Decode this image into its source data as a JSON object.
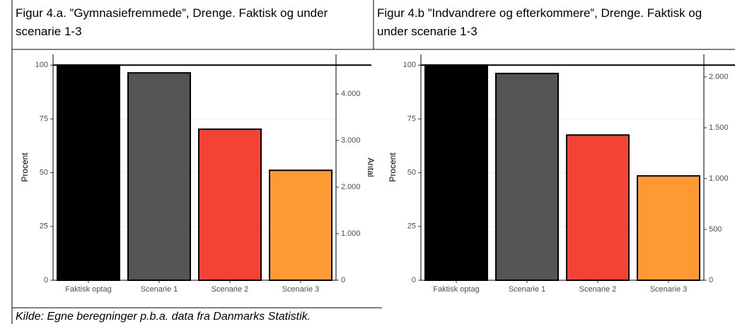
{
  "chart_data": [
    {
      "type": "bar",
      "title": "Figur 4.a. ”Gymnasiefremmede”, Drenge. Faktisk og under scenarie 1-3",
      "categories": [
        "Faktisk optag",
        "Scenarie 1",
        "Scenarie 2",
        "Scenarie 3"
      ],
      "values": [
        100,
        96.4,
        70.2,
        51.1
      ],
      "colors": [
        "#000000",
        "#555555",
        "#f44336",
        "#ff9a33"
      ],
      "ylabel": "Procent",
      "y2label": "Antal",
      "ylim": [
        0,
        105
      ],
      "yticks": [
        0,
        25,
        50,
        75,
        100
      ],
      "y2lim": [
        0,
        4850
      ],
      "y2ticks": [
        0,
        {
          "value": 1000,
          "label": "1.000"
        },
        {
          "value": 2000,
          "label": "2.000"
        },
        {
          "value": 3000,
          "label": "3.000"
        },
        {
          "value": 4000,
          "label": "4.000"
        }
      ],
      "hline": 100,
      "grid": true
    },
    {
      "type": "bar",
      "title": "Figur 4.b ”Indvandrere og efterkommere”, Drenge. Faktisk og under scenarie 1-3",
      "categories": [
        "Faktisk optag",
        "Scenarie 1",
        "Scenarie 2",
        "Scenarie 3"
      ],
      "values": [
        100,
        96.1,
        67.5,
        48.5
      ],
      "colors": [
        "#000000",
        "#555555",
        "#f44336",
        "#ff9a33"
      ],
      "ylabel": "Procent",
      "ylim": [
        0,
        105
      ],
      "yticks": [
        0,
        25,
        50,
        75,
        100
      ],
      "y2lim": [
        0,
        2222
      ],
      "y2ticks": [
        0,
        500,
        {
          "value": 1000,
          "label": "1.000"
        },
        {
          "value": 1500,
          "label": "1.500"
        },
        {
          "value": 2000,
          "label": "2.000"
        }
      ],
      "hline": 100,
      "grid": true
    }
  ],
  "source": "Kilde: Egne beregninger p.b.a. data fra Danmarks Statistik."
}
